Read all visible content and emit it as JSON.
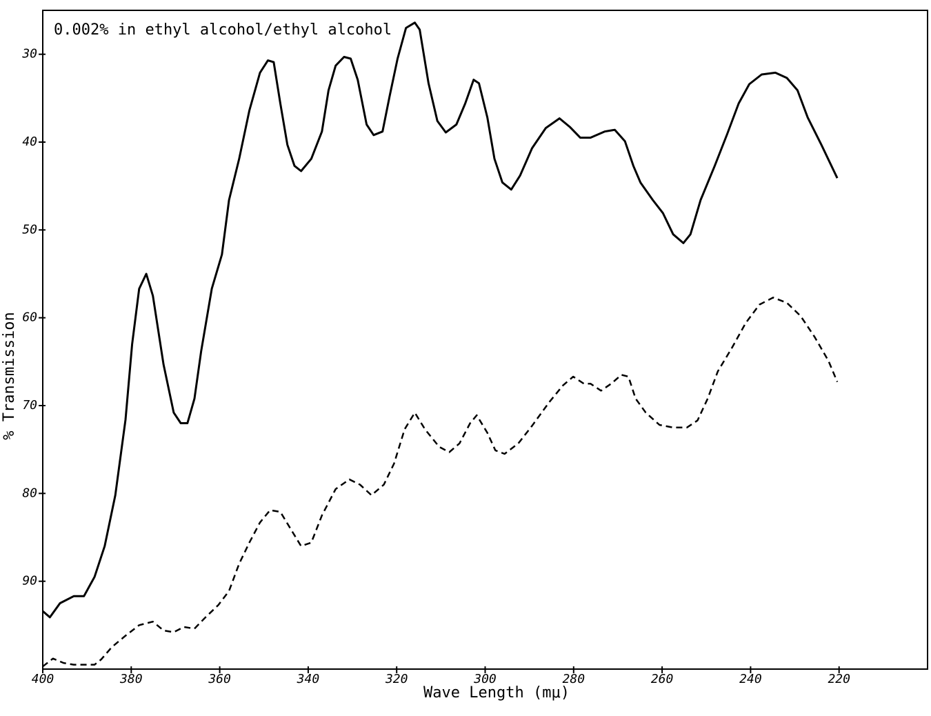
{
  "chart_data": {
    "type": "line",
    "title": "0.002% in ethyl alcohol/ethyl alcohol",
    "x_label": "Wave Length (mμ)",
    "y_label": "% Transmission",
    "xlim": [
      400,
      200
    ],
    "ylim": [
      100,
      25
    ],
    "xticks": [
      400,
      380,
      360,
      340,
      320,
      300,
      280,
      260,
      240,
      220
    ],
    "yticks": [
      30,
      40,
      50,
      60,
      70,
      80,
      90
    ],
    "grid": false,
    "series": [
      {
        "color": "#000000",
        "style": "solid",
        "x": [
          400,
          398.4,
          396.1,
          393,
          390.7,
          388.3,
          386,
          383.6,
          381.3,
          379.8,
          378.2,
          376.6,
          375.1,
          372.7,
          370.4,
          368.8,
          367.3,
          365.7,
          364.2,
          361.8,
          359.5,
          357.9,
          355.6,
          353.3,
          350.9,
          349.1,
          347.8,
          346.3,
          344.7,
          343.1,
          341.6,
          339.3,
          336.9,
          335.4,
          333.8,
          331.9,
          330.4,
          328.8,
          326.8,
          325.2,
          323.2,
          321.6,
          319.8,
          317.9,
          315.9,
          314.8,
          312.8,
          310.8,
          308.9,
          306.5,
          304.5,
          302.6,
          301.4,
          299.5,
          297.9,
          296.1,
          294.1,
          292.1,
          289.4,
          286.3,
          283.2,
          280.8,
          278.5,
          276.2,
          273,
          270.7,
          268.4,
          266.5,
          264.9,
          262.1,
          259.8,
          257.5,
          255.2,
          253.6,
          251.3,
          248.1,
          245.3,
          242.7,
          240.3,
          237.5,
          234.4,
          231.8,
          229.4,
          227.1,
          224,
          220.4
        ],
        "values": [
          93.4,
          94.1,
          92.5,
          91.7,
          91.7,
          89.5,
          86,
          80.2,
          71.6,
          63,
          56.7,
          55,
          57.5,
          65.3,
          70.8,
          72,
          72,
          69.2,
          63.8,
          56.7,
          52.8,
          46.6,
          41.9,
          36.4,
          32.1,
          30.7,
          30.9,
          35.6,
          40.3,
          42.7,
          43.3,
          41.9,
          38.8,
          34.1,
          31.3,
          30.3,
          30.5,
          32.9,
          38,
          39.2,
          38.8,
          34.8,
          30.5,
          27,
          26.4,
          27.2,
          33.3,
          37.6,
          38.9,
          38,
          35.6,
          32.9,
          33.3,
          37.2,
          41.9,
          44.6,
          45.4,
          43.8,
          40.7,
          38.4,
          37.3,
          38.3,
          39.5,
          39.5,
          38.8,
          38.6,
          39.9,
          42.7,
          44.6,
          46.6,
          48.1,
          50.5,
          51.5,
          50.5,
          46.6,
          42.7,
          39.1,
          35.6,
          33.4,
          32.3,
          32.1,
          32.7,
          34.1,
          37.2,
          40.3,
          44.1
        ]
      },
      {
        "color": "#000000",
        "style": "dashed",
        "x": [
          400,
          397.7,
          395.3,
          393,
          390.7,
          388.3,
          386.8,
          384.4,
          381.3,
          378.2,
          375.1,
          372.7,
          370.4,
          368.1,
          365.7,
          363.4,
          360.3,
          357.9,
          355.6,
          353.3,
          350.9,
          348.6,
          346.3,
          343.9,
          341.6,
          339.3,
          336.9,
          333.8,
          330.7,
          328.3,
          325.7,
          322.9,
          320.6,
          318.2,
          315.9,
          313.6,
          310.4,
          308.1,
          305.8,
          303.4,
          301.9,
          299.5,
          297.7,
          295.6,
          292.5,
          289.4,
          285.5,
          282.4,
          280.1,
          277.7,
          276.2,
          273.8,
          271.5,
          269.2,
          267.6,
          266,
          263.7,
          260.6,
          257.5,
          254.4,
          252,
          249.7,
          247.4,
          244.2,
          241.1,
          238,
          234.9,
          231.8,
          228.7,
          225.5,
          222.4,
          220.4
        ],
        "values": [
          99.7,
          98.8,
          99.3,
          99.5,
          99.5,
          99.5,
          98.9,
          97.5,
          96.2,
          95,
          94.6,
          95.6,
          95.8,
          95.2,
          95.4,
          94.2,
          92.7,
          91.1,
          88,
          85.6,
          83.3,
          81.9,
          82.1,
          84.1,
          86,
          85.6,
          82.5,
          79.5,
          78.4,
          79,
          80.2,
          79,
          76.6,
          72.7,
          70.8,
          72.7,
          74.7,
          75.3,
          74.3,
          72,
          71.1,
          73.1,
          75.1,
          75.5,
          74.3,
          72.3,
          69.6,
          67.7,
          66.7,
          67.5,
          67.5,
          68.3,
          67.5,
          66.5,
          66.7,
          69.2,
          70.8,
          72.2,
          72.5,
          72.5,
          71.7,
          69.2,
          66.1,
          63.4,
          60.6,
          58.5,
          57.7,
          58.3,
          59.8,
          62.2,
          64.9,
          67.3
        ]
      }
    ]
  }
}
